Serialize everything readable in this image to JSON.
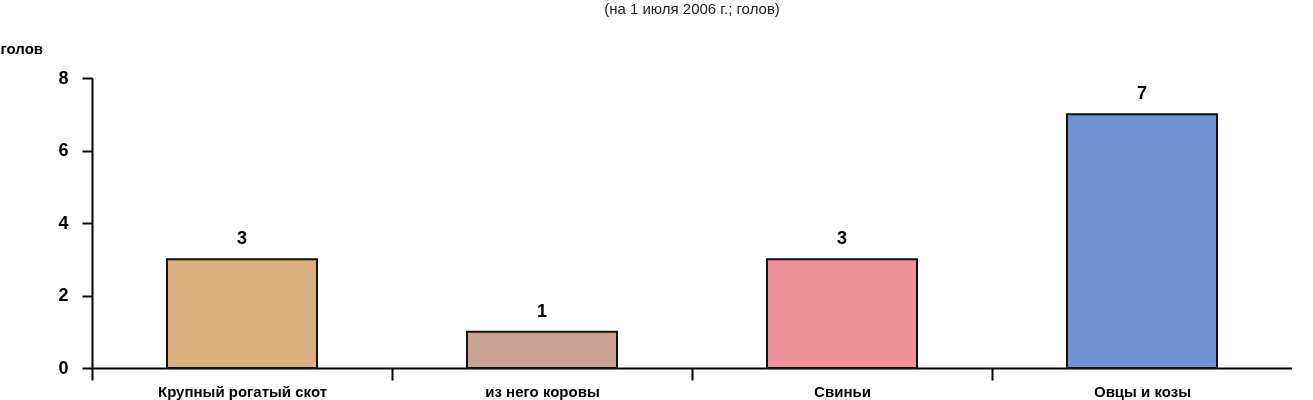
{
  "chart_data": {
    "type": "bar",
    "title": "(на 1 июля 2006 г.; голов)",
    "ylabel": "голов",
    "categories": [
      "Крупный рогатый скот",
      "из него коровы",
      "Свиньи",
      "Овцы и козы"
    ],
    "values": [
      3,
      1,
      3,
      7
    ],
    "colors": [
      "#dcb07c",
      "#c9a191",
      "#ec9099",
      "#6f93d2"
    ],
    "ylim": [
      0,
      8
    ],
    "yticks": [
      0,
      2,
      4,
      6,
      8
    ],
    "grid": false,
    "data_labels": true
  }
}
